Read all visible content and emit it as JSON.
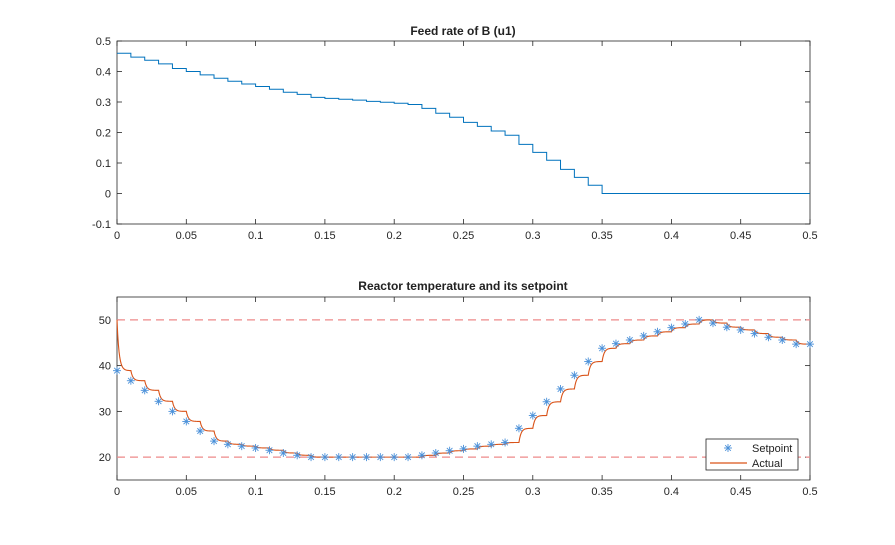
{
  "chart_data": [
    {
      "type": "line",
      "style": "stairs",
      "title": "Feed rate of B (u1)",
      "xlabel": "",
      "ylabel": "",
      "xlim": [
        0,
        0.5
      ],
      "ylim": [
        -0.1,
        0.5
      ],
      "xticks": [
        "0",
        "0.05",
        "0.1",
        "0.15",
        "0.2",
        "0.25",
        "0.3",
        "0.35",
        "0.4",
        "0.45",
        "0.5"
      ],
      "yticks": [
        "-0.1",
        "0",
        "0.1",
        "0.2",
        "0.3",
        "0.4",
        "0.5"
      ],
      "step": 0.01,
      "series": [
        {
          "name": "u1",
          "color": "#0072BD",
          "values": [
            0.46,
            0.447,
            0.437,
            0.425,
            0.41,
            0.4,
            0.389,
            0.378,
            0.368,
            0.359,
            0.351,
            0.342,
            0.332,
            0.325,
            0.315,
            0.312,
            0.309,
            0.306,
            0.302,
            0.299,
            0.296,
            0.292,
            0.279,
            0.263,
            0.25,
            0.233,
            0.22,
            0.205,
            0.191,
            0.161,
            0.135,
            0.109,
            0.079,
            0.053,
            0.027,
            0.0,
            0.0
          ]
        }
      ]
    },
    {
      "type": "line",
      "title": "Reactor temperature and its setpoint",
      "xlabel": "",
      "ylabel": "",
      "xlim": [
        0,
        0.5
      ],
      "ylim": [
        15,
        55
      ],
      "xticks": [
        "0",
        "0.05",
        "0.1",
        "0.15",
        "0.2",
        "0.25",
        "0.3",
        "0.35",
        "0.4",
        "0.45",
        "0.5"
      ],
      "yticks": [
        "20",
        "30",
        "40",
        "50"
      ],
      "step": 0.01,
      "limits": {
        "upper": 50,
        "lower": 20,
        "color": "#EE8A8A"
      },
      "legend": {
        "position": "bottom-right",
        "entries": [
          "Setpoint",
          "Actual"
        ]
      },
      "series": [
        {
          "name": "Setpoint",
          "marker": "asterisk",
          "color": "#4A90D9",
          "values": [
            38.9,
            36.7,
            34.6,
            32.2,
            30.0,
            27.8,
            25.7,
            23.5,
            22.8,
            22.4,
            22.0,
            21.5,
            20.9,
            20.4,
            20,
            20,
            20,
            20,
            20,
            20,
            20,
            20,
            20.4,
            20.9,
            21.4,
            21.8,
            22.4,
            22.8,
            23.2,
            26.3,
            29.1,
            32.1,
            34.9,
            37.9,
            40.9,
            43.8,
            44.8,
            45.6,
            46.5,
            47.4,
            48.3,
            49.1,
            50.0,
            49.3,
            48.4,
            47.8,
            47.0,
            46.2,
            45.6,
            44.7,
            44.7
          ]
        },
        {
          "name": "Actual",
          "color": "#D95319",
          "initial": 50
        }
      ]
    }
  ]
}
